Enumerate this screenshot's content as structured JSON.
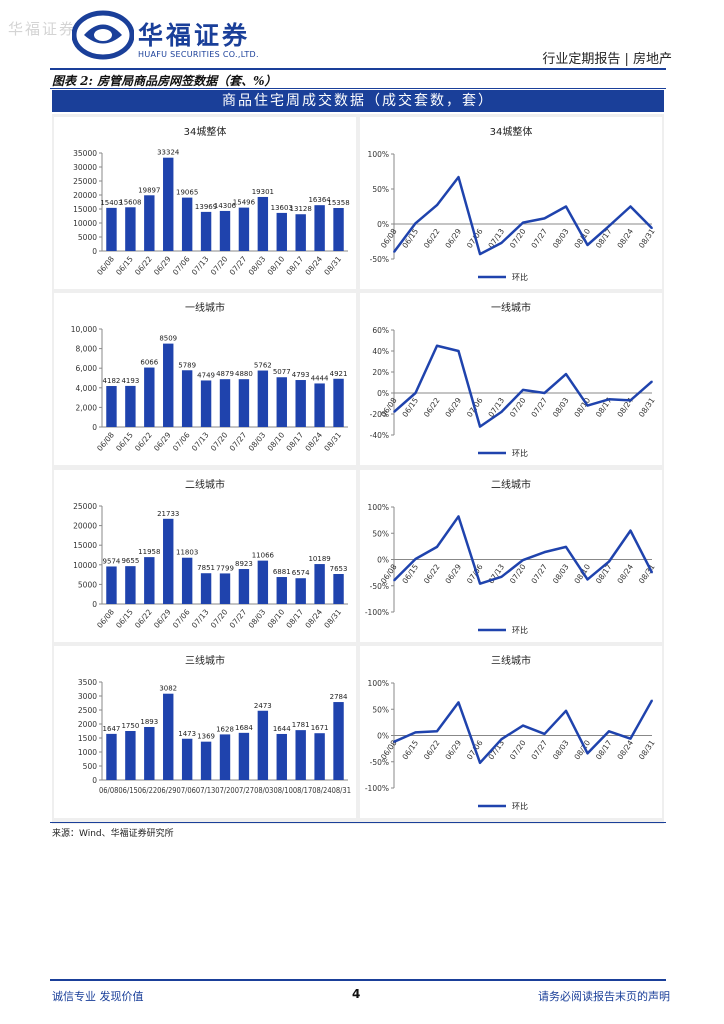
{
  "watermark": "华福证券",
  "brand": {
    "cn": "华福证券",
    "en": "HUAFU SECURITIES CO.,LTD."
  },
  "header": {
    "right": "行业定期报告 | 房地产"
  },
  "figure": {
    "title": "图表 2: 房管局商品房网签数据（套、%）",
    "banner": "商品住宅周成交数据（成交套数，套）"
  },
  "source": "来源：Wind、华福证券研究所",
  "footer": {
    "left": "诚信专业  发现价值",
    "page": "4",
    "right": "请务必阅读报告末页的声明"
  },
  "colors": {
    "brand": "#1a3f99",
    "bar": "#1f43ad",
    "line": "#1f43ad"
  },
  "chart_data": [
    {
      "type": "bar",
      "title": "34城整体",
      "categories": [
        "06/08",
        "06/15",
        "06/22",
        "06/29",
        "07/06",
        "07/13",
        "07/20",
        "07/27",
        "08/03",
        "08/10",
        "08/17",
        "08/24",
        "08/31"
      ],
      "values": [
        15403,
        15608,
        19897,
        33324,
        19065,
        13969,
        14306,
        15496,
        19301,
        13603,
        13128,
        16364,
        15358
      ],
      "labels": [
        "15403",
        "15608",
        "19897",
        "33324",
        "19065",
        "13969",
        "14306",
        "15496",
        "19301",
        "13603",
        "13128",
        "16364",
        "15358"
      ],
      "yticks": [
        "0",
        "5000",
        "10000",
        "15000",
        "20000",
        "25000",
        "30000",
        "35000"
      ],
      "ylim": [
        0,
        35000
      ]
    },
    {
      "type": "line",
      "title": "34城整体",
      "legend": "环比",
      "categories": [
        "06/08",
        "06/15",
        "06/22",
        "06/29",
        "07/06",
        "07/13",
        "07/20",
        "07/27",
        "08/03",
        "08/10",
        "08/17",
        "08/24",
        "08/31"
      ],
      "values": [
        -0.4,
        0.01,
        0.27,
        0.67,
        -0.43,
        -0.27,
        0.02,
        0.08,
        0.25,
        -0.3,
        -0.03,
        0.25,
        -0.06
      ],
      "yticks": [
        "-50%",
        "0%",
        "50%",
        "100%"
      ],
      "ylim": [
        -0.5,
        1.0
      ]
    },
    {
      "type": "bar",
      "title": "一线城市",
      "categories": [
        "06/08",
        "06/15",
        "06/22",
        "06/29",
        "07/06",
        "07/13",
        "07/20",
        "07/27",
        "08/03",
        "08/10",
        "08/17",
        "08/24",
        "08/31"
      ],
      "values": [
        4182,
        4193,
        6066,
        8509,
        5789,
        4749,
        4879,
        4880,
        5762,
        5077,
        4793,
        4444,
        4921
      ],
      "labels": [
        "4182",
        "4193",
        "6066",
        "8509",
        "5789",
        "4749",
        "4879",
        "4880",
        "5762",
        "5077",
        "4793",
        "4444",
        "4921"
      ],
      "yticks": [
        "0",
        "2,000",
        "4,000",
        "6,000",
        "8,000",
        "10,000"
      ],
      "ylim": [
        0,
        10000
      ]
    },
    {
      "type": "line",
      "title": "一线城市",
      "legend": "环比",
      "categories": [
        "06/08",
        "06/15",
        "06/22",
        "06/29",
        "07/06",
        "07/13",
        "07/20",
        "07/27",
        "08/03",
        "08/10",
        "08/17",
        "08/24",
        "08/31"
      ],
      "values": [
        -0.18,
        0.0,
        0.45,
        0.4,
        -0.32,
        -0.18,
        0.03,
        0.0,
        0.18,
        -0.12,
        -0.06,
        -0.07,
        0.11
      ],
      "yticks": [
        "-40%",
        "-20%",
        "0%",
        "20%",
        "40%",
        "60%"
      ],
      "ylim": [
        -0.4,
        0.6
      ]
    },
    {
      "type": "bar",
      "title": "二线城市",
      "categories": [
        "06/08",
        "06/15",
        "06/22",
        "06/29",
        "07/06",
        "07/13",
        "07/20",
        "07/27",
        "08/03",
        "08/10",
        "08/17",
        "08/24",
        "08/31"
      ],
      "values": [
        9574,
        9655,
        11958,
        21733,
        11803,
        7851,
        7799,
        8923,
        11066,
        6881,
        6574,
        10189,
        7653
      ],
      "labels": [
        "9574",
        "9655",
        "11958",
        "21733",
        "11803",
        "7851",
        "7799",
        "8923",
        "11066",
        "6881",
        "6574",
        "10189",
        "7653"
      ],
      "yticks": [
        "0",
        "5000",
        "10000",
        "15000",
        "20000",
        "25000"
      ],
      "ylim": [
        0,
        25000
      ]
    },
    {
      "type": "line",
      "title": "二线城市",
      "legend": "环比",
      "categories": [
        "06/08",
        "06/15",
        "06/22",
        "06/29",
        "07/06",
        "07/13",
        "07/20",
        "07/27",
        "08/03",
        "08/10",
        "08/17",
        "08/24",
        "08/31"
      ],
      "values": [
        -0.4,
        0.01,
        0.24,
        0.82,
        -0.46,
        -0.33,
        -0.01,
        0.14,
        0.24,
        -0.38,
        -0.04,
        0.55,
        -0.25
      ],
      "yticks": [
        "-100%",
        "-50%",
        "0%",
        "50%",
        "100%"
      ],
      "ylim": [
        -1.0,
        1.0
      ]
    },
    {
      "type": "bar",
      "title": "三线城市",
      "categories": [
        "06/08",
        "06/15",
        "06/22",
        "06/29",
        "07/06",
        "07/13",
        "07/20",
        "07/27",
        "08/03",
        "08/10",
        "08/17",
        "08/24",
        "08/31"
      ],
      "values": [
        1647,
        1750,
        1893,
        3082,
        1473,
        1369,
        1628,
        1684,
        2473,
        1644,
        1781,
        1671,
        2784
      ],
      "labels": [
        "1647",
        "1750",
        "1893",
        "3082",
        "1473",
        "1369",
        "1628",
        "1684",
        "2473",
        "1644",
        "1781",
        "1671",
        "2784"
      ],
      "xticklabels": "06/0806/1506/2206/2907/0607/1307/2007/2708/0308/1008/1708/2408/31",
      "yticks": [
        "0",
        "500",
        "1000",
        "1500",
        "2000",
        "2500",
        "3000",
        "3500"
      ],
      "ylim": [
        0,
        3500
      ]
    },
    {
      "type": "line",
      "title": "三线城市",
      "legend": "环比",
      "categories": [
        "06/08",
        "06/15",
        "06/22",
        "06/29",
        "07/06",
        "07/13",
        "07/20",
        "07/27",
        "08/03",
        "08/10",
        "08/17",
        "08/24",
        "08/31"
      ],
      "values": [
        -0.12,
        0.06,
        0.08,
        0.63,
        -0.52,
        -0.07,
        0.19,
        0.03,
        0.47,
        -0.34,
        0.08,
        -0.06,
        0.67
      ],
      "yticks": [
        "-100%",
        "-50%",
        "0%",
        "50%",
        "100%"
      ],
      "ylim": [
        -1.0,
        1.0
      ]
    }
  ]
}
